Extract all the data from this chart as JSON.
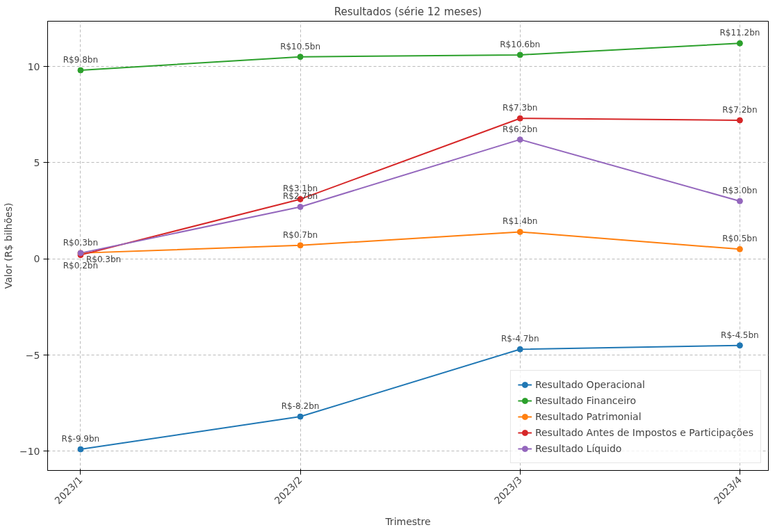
{
  "chart_data": {
    "type": "line",
    "title": "Resultados (série 12 meses)",
    "xlabel": "Trimestre",
    "ylabel": "Valor (R$ bilhões)",
    "categories": [
      "2023/1",
      "2023/2",
      "2023/3",
      "2023/4"
    ],
    "series": [
      {
        "name": "Resultado Operacional",
        "color": "#1f77b4",
        "values": [
          -9.9,
          -8.2,
          -4.7,
          -4.5
        ],
        "value_labels": [
          "R$-9.9bn",
          "R$-8.2bn",
          "R$-4.7bn",
          "R$-4.5bn"
        ]
      },
      {
        "name": "Resultado Financeiro",
        "color": "#2ca02c",
        "values": [
          9.8,
          10.5,
          10.6,
          11.2
        ],
        "value_labels": [
          "R$9.8bn",
          "R$10.5bn",
          "R$10.6bn",
          "R$11.2bn"
        ]
      },
      {
        "name": "Resultado Patrimonial",
        "color": "#ff7f0e",
        "values": [
          0.3,
          0.7,
          1.4,
          0.5
        ],
        "value_labels": [
          "R$0.3bn",
          "R$0.7bn",
          "R$1.4bn",
          "R$0.5bn"
        ]
      },
      {
        "name": "Resultado Antes de Impostos e Participações",
        "color": "#d62728",
        "values": [
          0.2,
          3.1,
          7.3,
          7.2
        ],
        "value_labels": [
          "R$0.2bn",
          "R$3.1bn",
          "R$7.3bn",
          "R$7.2bn"
        ]
      },
      {
        "name": "Resultado Líquido",
        "color": "#9467bd",
        "values": [
          0.3,
          2.7,
          6.2,
          3.0
        ],
        "value_labels": [
          "R$0.3bn",
          "R$2.7bn",
          "R$6.2bn",
          "R$3.0bn"
        ]
      }
    ],
    "ylim": [
      -11,
      12.35
    ],
    "yticks": [
      {
        "value": -10,
        "label": "−10"
      },
      {
        "value": -5,
        "label": "−5"
      },
      0,
      5,
      10
    ],
    "grid": true,
    "legend": "bottom right",
    "marker": "circle",
    "line_style": "solid"
  }
}
